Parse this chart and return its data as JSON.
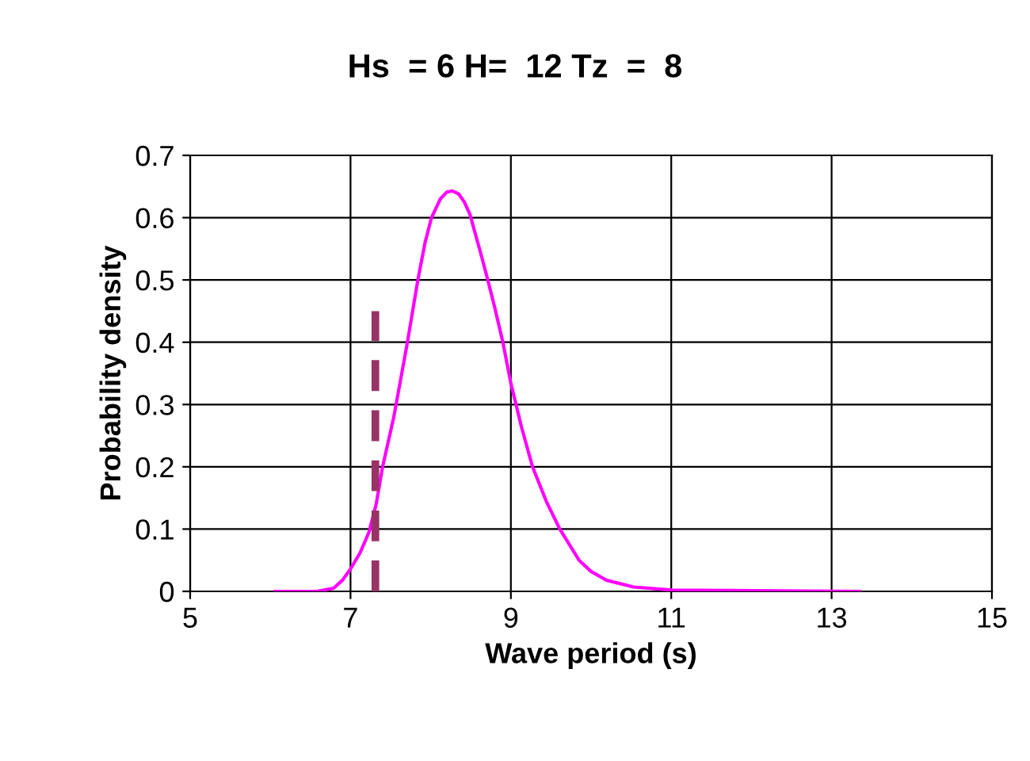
{
  "chart_data": {
    "type": "line",
    "title": "Hs  = 6 H=  12 Tz  =  8",
    "xlabel": "Wave period (s)",
    "ylabel": "Probability density",
    "xlim": [
      5,
      15
    ],
    "xticks": [
      5,
      7,
      9,
      11,
      13,
      15
    ],
    "ylim": [
      0,
      0.7
    ],
    "yticks": [
      0,
      0.1,
      0.2,
      0.3,
      0.4,
      0.5,
      0.6,
      0.7
    ],
    "grid": true,
    "marker": "none",
    "series": [
      {
        "color": "#ff00ff",
        "line_style": "solid",
        "x": [
          6.06,
          6.58,
          6.79,
          6.9,
          7.0,
          7.12,
          7.23,
          7.32,
          7.4,
          7.54,
          7.71,
          7.84,
          7.93,
          8.01,
          8.12,
          8.2,
          8.27,
          8.35,
          8.42,
          8.49,
          8.63,
          8.7,
          8.8,
          8.9,
          9.0,
          9.13,
          9.27,
          9.44,
          9.61,
          9.85,
          10.0,
          10.19,
          10.53,
          11.01,
          13.35
        ],
        "values": [
          0,
          0,
          0.005,
          0.018,
          0.036,
          0.062,
          0.095,
          0.14,
          0.2,
          0.28,
          0.4,
          0.5,
          0.56,
          0.6,
          0.63,
          0.641,
          0.643,
          0.638,
          0.625,
          0.605,
          0.54,
          0.506,
          0.455,
          0.4,
          0.334,
          0.265,
          0.2,
          0.145,
          0.1,
          0.05,
          0.032,
          0.018,
          0.007,
          0.002,
          0
        ]
      },
      {
        "color": "#993366",
        "line_style": "dashed",
        "x": [
          7.31,
          7.31
        ],
        "values": [
          0,
          0.45
        ]
      }
    ]
  }
}
